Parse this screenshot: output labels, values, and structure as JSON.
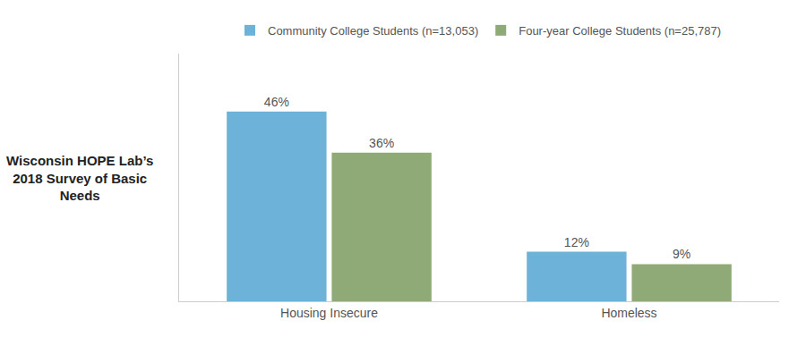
{
  "chart_data": {
    "type": "bar",
    "categories": [
      "Housing Insecure",
      "Homeless"
    ],
    "series": [
      {
        "name": "Community College Students (n=13,053)",
        "color": "#6db3d9",
        "values": [
          46,
          12
        ],
        "value_labels": [
          "46%",
          "12%"
        ]
      },
      {
        "name": "Four-year College Students (n=25,787)",
        "color": "#8faa76",
        "values": [
          36,
          9
        ],
        "value_labels": [
          "36%",
          "9%"
        ]
      }
    ],
    "ylabel": "Wisconsin HOPE Lab’s\n2018 Survey of Basic\nNeeds",
    "ylim": [
      0,
      60
    ],
    "yticks": [],
    "grid": false,
    "legend": "top",
    "data_labels": true,
    "tick_labels": "x"
  }
}
